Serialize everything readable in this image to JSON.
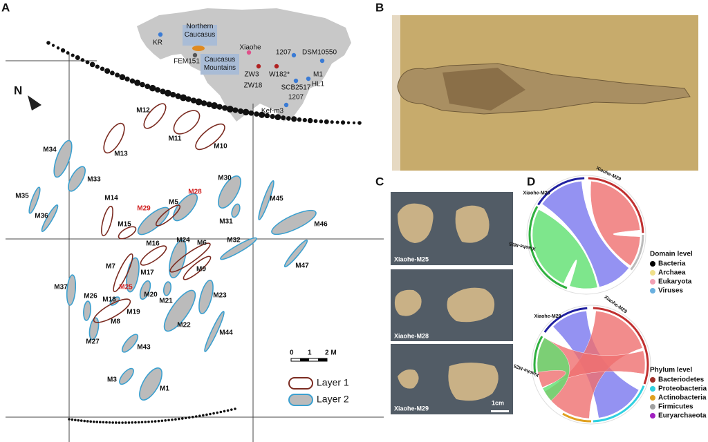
{
  "panels": {
    "a": "A",
    "b": "B",
    "c": "C",
    "d": "D"
  },
  "map": {
    "compass": "N",
    "sites": [
      "KR",
      "Northern Caucasus",
      "Caucasus Mountains",
      "FEM151",
      "Xiaohe",
      "ZW3",
      "ZW18",
      "W182*",
      "1207",
      "DSM10550",
      "M1",
      "HL1",
      "SCB2517",
      "1207",
      "Kef-m3"
    ],
    "tombs": [
      "M12",
      "M11",
      "M13",
      "M10",
      "M14",
      "M15",
      "M5",
      "M16",
      "M7",
      "M6",
      "M9",
      "M8",
      "M34",
      "M33",
      "M35",
      "M36",
      "M30",
      "M28",
      "M29",
      "M31",
      "M45",
      "M46",
      "M32",
      "M47",
      "M24",
      "M37",
      "M25",
      "M26",
      "M18",
      "M20",
      "M21",
      "M23",
      "M22",
      "M27",
      "M44",
      "M43",
      "M3",
      "M1",
      "M19",
      "M17"
    ],
    "scale": [
      "0",
      "1",
      "2 M"
    ],
    "legend": [
      "Layer 1",
      "Layer 2"
    ]
  },
  "samples": {
    "labels": [
      "Xiaohe-M25",
      "Xiaohe-M28",
      "Xiaohe-M29"
    ],
    "scale": "1cm"
  },
  "domain": {
    "arcs": [
      "Xiaohe-M28",
      "Xiaohe-M29",
      "Xiaohe-M25"
    ],
    "title": "Domain level",
    "legend": [
      {
        "name": "Bacteria",
        "color": "#000000"
      },
      {
        "name": "Archaea",
        "color": "#f0e08a"
      },
      {
        "name": "Eukaryota",
        "color": "#f2a0b4"
      },
      {
        "name": "Viruses",
        "color": "#6ab0e0"
      }
    ]
  },
  "phylum": {
    "arcs": [
      "Xiaohe-M28",
      "Xiaohe-M29",
      "Xiaohe-M25"
    ],
    "title": "Phylum level",
    "legend": [
      {
        "name": "Bacteriodetes",
        "color": "#a0302a"
      },
      {
        "name": "Proteobacteria",
        "color": "#30d0e0"
      },
      {
        "name": "Actinobacteria",
        "color": "#e0a020"
      },
      {
        "name": "Firmicutes",
        "color": "#a0a0a0"
      },
      {
        "name": "Euryarchaeota",
        "color": "#a020c0"
      }
    ]
  }
}
